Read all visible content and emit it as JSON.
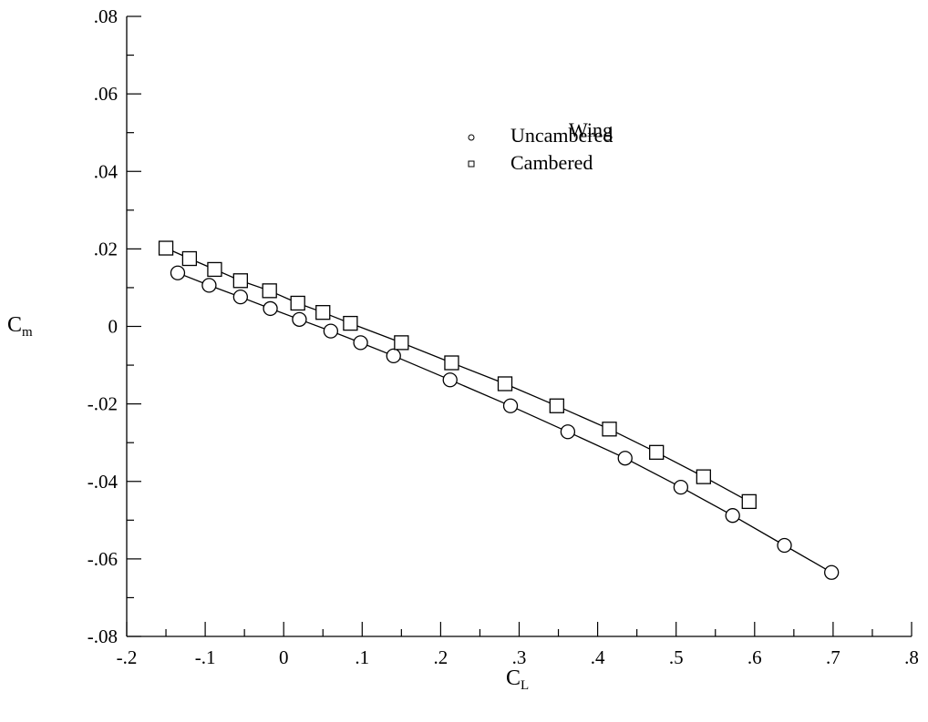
{
  "chart_data": {
    "type": "line",
    "title": "",
    "xlabel": {
      "main": "C",
      "sub": "L"
    },
    "ylabel": {
      "main": "C",
      "sub": "m"
    },
    "xlim": [
      -0.2,
      0.8
    ],
    "ylim": [
      -0.08,
      0.08
    ],
    "x_ticks": [
      {
        "value": -0.2,
        "label": "-.2"
      },
      {
        "value": -0.1,
        "label": "-.1"
      },
      {
        "value": 0,
        "label": "0"
      },
      {
        "value": 0.1,
        "label": ".1"
      },
      {
        "value": 0.2,
        "label": ".2"
      },
      {
        "value": 0.3,
        "label": ".3"
      },
      {
        "value": 0.4,
        "label": ".4"
      },
      {
        "value": 0.5,
        "label": ".5"
      },
      {
        "value": 0.6,
        "label": ".6"
      },
      {
        "value": 0.7,
        "label": ".7"
      },
      {
        "value": 0.8,
        "label": ".8"
      }
    ],
    "y_ticks": [
      {
        "value": 0.08,
        "label": ".08"
      },
      {
        "value": 0.06,
        "label": ".06"
      },
      {
        "value": 0.04,
        "label": ".04"
      },
      {
        "value": 0.02,
        "label": ".02"
      },
      {
        "value": 0,
        "label": "0"
      },
      {
        "value": -0.02,
        "label": "-.02"
      },
      {
        "value": -0.04,
        "label": "-.04"
      },
      {
        "value": -0.06,
        "label": "-.06"
      },
      {
        "value": -0.08,
        "label": "-.08"
      }
    ],
    "grid": false,
    "legend": {
      "title": "Wing",
      "placement": "top-center"
    },
    "series": [
      {
        "name": "Uncambered",
        "marker": "circle",
        "x": [
          -0.135,
          -0.095,
          -0.055,
          -0.017,
          0.02,
          0.06,
          0.098,
          0.14,
          0.212,
          0.289,
          0.362,
          0.435,
          0.506,
          0.572,
          0.638,
          0.698
        ],
        "y": [
          0.0138,
          0.0106,
          0.0076,
          0.0046,
          0.0018,
          -0.0012,
          -0.0042,
          -0.0076,
          -0.0138,
          -0.0205,
          -0.0272,
          -0.034,
          -0.0415,
          -0.0488,
          -0.0565,
          -0.0635
        ]
      },
      {
        "name": "Cambered",
        "marker": "square",
        "x": [
          -0.15,
          -0.12,
          -0.088,
          -0.055,
          -0.018,
          0.018,
          0.05,
          0.085,
          0.15,
          0.214,
          0.282,
          0.348,
          0.415,
          0.475,
          0.535,
          0.593
        ],
        "y": [
          0.0202,
          0.0175,
          0.0147,
          0.0118,
          0.0092,
          0.006,
          0.0036,
          0.0008,
          -0.0042,
          -0.0094,
          -0.0148,
          -0.0205,
          -0.0265,
          -0.0325,
          -0.0388,
          -0.0452
        ]
      }
    ]
  }
}
